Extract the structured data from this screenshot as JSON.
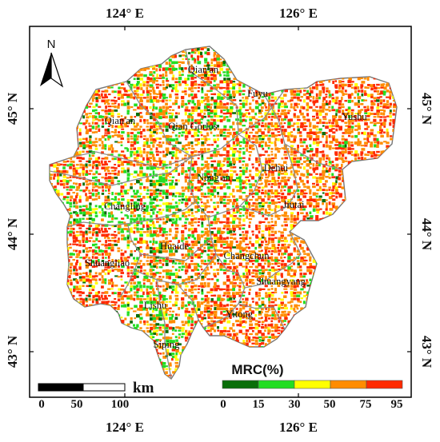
{
  "axes": {
    "top": [
      "124° E",
      "126° E"
    ],
    "bottom": [
      "124° E",
      "126° E"
    ],
    "left": [
      "45° N",
      "44° N",
      "43° N"
    ],
    "right": [
      "45° N",
      "44° N",
      "43° N"
    ]
  },
  "north_arrow": {
    "letter": "N"
  },
  "regions": [
    "Qian'an",
    "Fuyu",
    "Qian'an",
    "Qian Gorlos",
    "Yushu",
    "Nong'an",
    "Dehui",
    "Changling",
    "Jiutai",
    "Huaide",
    "Shuangliao",
    "Changchun",
    "Shuangyang",
    "Lishu",
    "Yitong",
    "Siping"
  ],
  "scale_bar": {
    "ticks": [
      "0",
      "50",
      "100"
    ],
    "unit": "km"
  },
  "legend": {
    "title": "MRC(%)",
    "ticks": [
      "0",
      "15",
      "30",
      "50",
      "75",
      "95"
    ],
    "classes": [
      {
        "range": "0-15",
        "color": "#0a6e0a"
      },
      {
        "range": "15-30",
        "color": "#22dd22"
      },
      {
        "range": "30-50",
        "color": "#ffff00"
      },
      {
        "range": "50-75",
        "color": "#ff8c00"
      },
      {
        "range": "75-95",
        "color": "#ff2a00"
      }
    ]
  },
  "colors": {
    "frame": "#000000",
    "boundary": "#8c8c8c"
  }
}
